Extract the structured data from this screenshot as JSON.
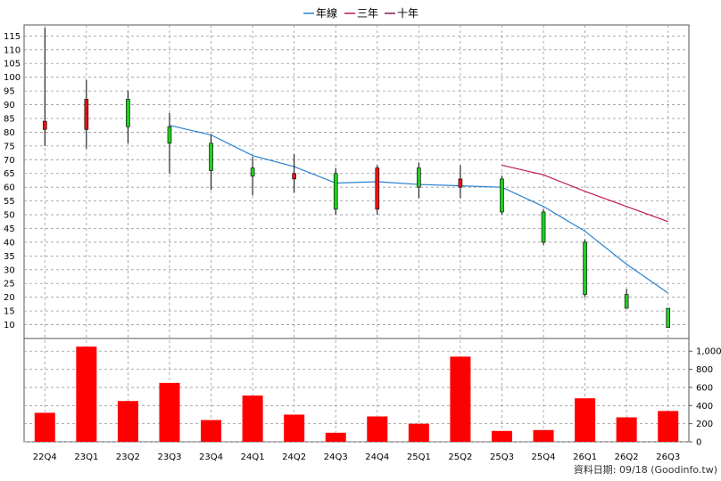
{
  "legend": [
    {
      "label": "年線",
      "color": "#1f77d0"
    },
    {
      "label": "三年",
      "color": "#c0185a"
    },
    {
      "label": "十年",
      "color": "#7a1f5e"
    }
  ],
  "footer": "資料日期: 09/18  (Goodinfo.tw)",
  "colors": {
    "up": "#ee1111",
    "down": "#22cc22",
    "volume": "#ff0000",
    "grid": "#999999",
    "line_year": "#2a7fd0",
    "line_three": "#c0185a"
  },
  "chart_data": [
    {
      "type": "candlestick",
      "categories": [
        "22Q4",
        "23Q1",
        "23Q2",
        "23Q3",
        "23Q4",
        "24Q1",
        "24Q2",
        "24Q3",
        "24Q4",
        "25Q1",
        "25Q2",
        "25Q3",
        "25Q4",
        "26Q1",
        "26Q2",
        "26Q3"
      ],
      "yticks": [
        10,
        15,
        20,
        25,
        30,
        35,
        40,
        45,
        50,
        55,
        60,
        65,
        70,
        75,
        80,
        85,
        90,
        95,
        100,
        105,
        110,
        115
      ],
      "ylim": [
        5,
        119
      ],
      "grid": true,
      "candles": [
        {
          "open": 81,
          "close": 84,
          "high": 118,
          "low": 75
        },
        {
          "open": 81,
          "close": 92,
          "high": 99,
          "low": 74
        },
        {
          "open": 92,
          "close": 82,
          "high": 95,
          "low": 76
        },
        {
          "open": 82,
          "close": 76,
          "high": 87,
          "low": 65
        },
        {
          "open": 76,
          "close": 66,
          "high": 79,
          "low": 59
        },
        {
          "open": 67,
          "close": 64,
          "high": 71,
          "low": 57
        },
        {
          "open": 63,
          "close": 65,
          "high": 72,
          "low": 58
        },
        {
          "open": 65,
          "close": 52,
          "high": 67,
          "low": 50
        },
        {
          "open": 52,
          "close": 67,
          "high": 68,
          "low": 50
        },
        {
          "open": 67,
          "close": 60,
          "high": 69,
          "low": 56
        },
        {
          "open": 60,
          "close": 63,
          "high": 68,
          "low": 56
        },
        {
          "open": 63,
          "close": 51,
          "high": 64,
          "low": 50
        },
        {
          "open": 51,
          "close": 40,
          "high": 52,
          "low": 39
        },
        {
          "open": 40,
          "close": 21,
          "high": 41,
          "low": 20
        },
        {
          "open": 21,
          "close": 16,
          "high": 23,
          "low": 16
        },
        {
          "open": 16,
          "close": 9,
          "high": 16,
          "low": 9
        }
      ],
      "series": [
        {
          "name": "年線",
          "values": [
            null,
            null,
            null,
            82.5,
            79,
            71.5,
            67.5,
            61.5,
            62,
            61,
            60.5,
            60,
            53,
            44,
            32,
            21.5
          ]
        },
        {
          "name": "三年",
          "values": [
            null,
            null,
            null,
            null,
            null,
            null,
            null,
            null,
            null,
            null,
            null,
            68,
            64.5,
            58.5,
            53,
            47.5
          ]
        }
      ]
    },
    {
      "type": "bar",
      "name": "volume",
      "categories": [
        "22Q4",
        "23Q1",
        "23Q2",
        "23Q3",
        "23Q4",
        "24Q1",
        "24Q2",
        "24Q3",
        "24Q4",
        "25Q1",
        "25Q2",
        "25Q3",
        "25Q4",
        "26Q1",
        "26Q2",
        "26Q3"
      ],
      "values": [
        320,
        1050,
        450,
        650,
        240,
        510,
        300,
        100,
        280,
        200,
        940,
        120,
        130,
        480,
        270,
        340
      ],
      "yticks": [
        0,
        200,
        400,
        600,
        800,
        1000
      ],
      "ytick_labels": [
        "0",
        "200",
        "400",
        "600",
        "800",
        "1,000"
      ],
      "ylim": [
        0,
        1140
      ]
    }
  ]
}
